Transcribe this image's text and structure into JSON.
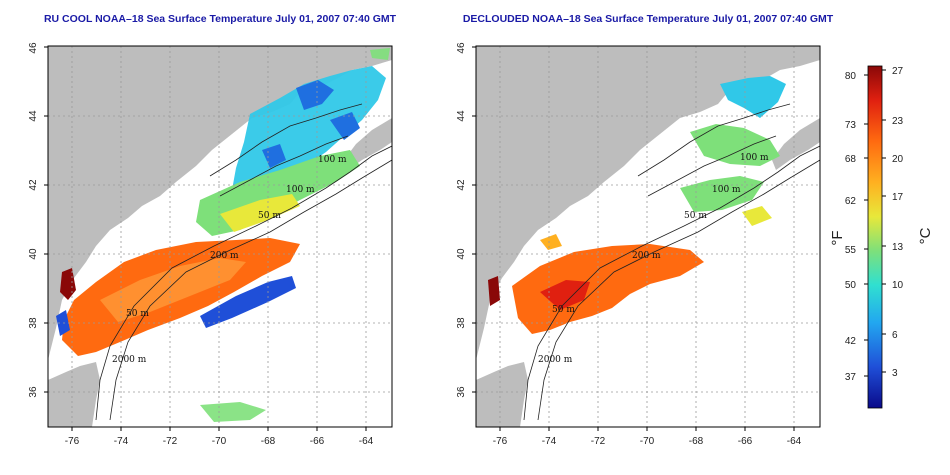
{
  "panels": [
    {
      "title": "RU COOL NOAA–18 Sea Surface Temperature July 01, 2007 07:40 GMT",
      "x_ticks": [
        "-76",
        "-74",
        "-72",
        "-70",
        "-68",
        "-66",
        "-64"
      ],
      "y_ticks": [
        "36",
        "38",
        "40",
        "42",
        "44",
        "46"
      ],
      "depth_labels": [
        "100 m",
        "100 m",
        "50 m",
        "200 m",
        "50 m",
        "2000 m"
      ]
    },
    {
      "title": "DECLOUDED NOAA–18 Sea Surface Temperature July 01, 2007 07:40 GMT",
      "x_ticks": [
        "-76",
        "-74",
        "-72",
        "-70",
        "-68",
        "-66",
        "-64"
      ],
      "y_ticks": [
        "36",
        "38",
        "40",
        "42",
        "44",
        "46"
      ],
      "depth_labels": [
        "100 m",
        "100 m",
        "50 m",
        "200 m",
        "50 m",
        "2000 m"
      ]
    }
  ],
  "colorbar": {
    "fahrenheit_unit": "°F",
    "celsius_unit": "°C",
    "fahrenheit_ticks": [
      "80",
      "73",
      "68",
      "62",
      "55",
      "50",
      "42",
      "37"
    ],
    "celsius_ticks": [
      "27",
      "23",
      "20",
      "17",
      "13",
      "10",
      "6",
      "3"
    ],
    "colors": [
      "#0a0a8a",
      "#1f4fd8",
      "#22a7f0",
      "#30e0d0",
      "#7ee07a",
      "#e8e83a",
      "#ffb020",
      "#ff6a10",
      "#e02010",
      "#8a0808"
    ]
  },
  "colors": {
    "land": "#bdbdbd",
    "water_nodata": "#ffffff",
    "title": "#1a1aa6"
  }
}
